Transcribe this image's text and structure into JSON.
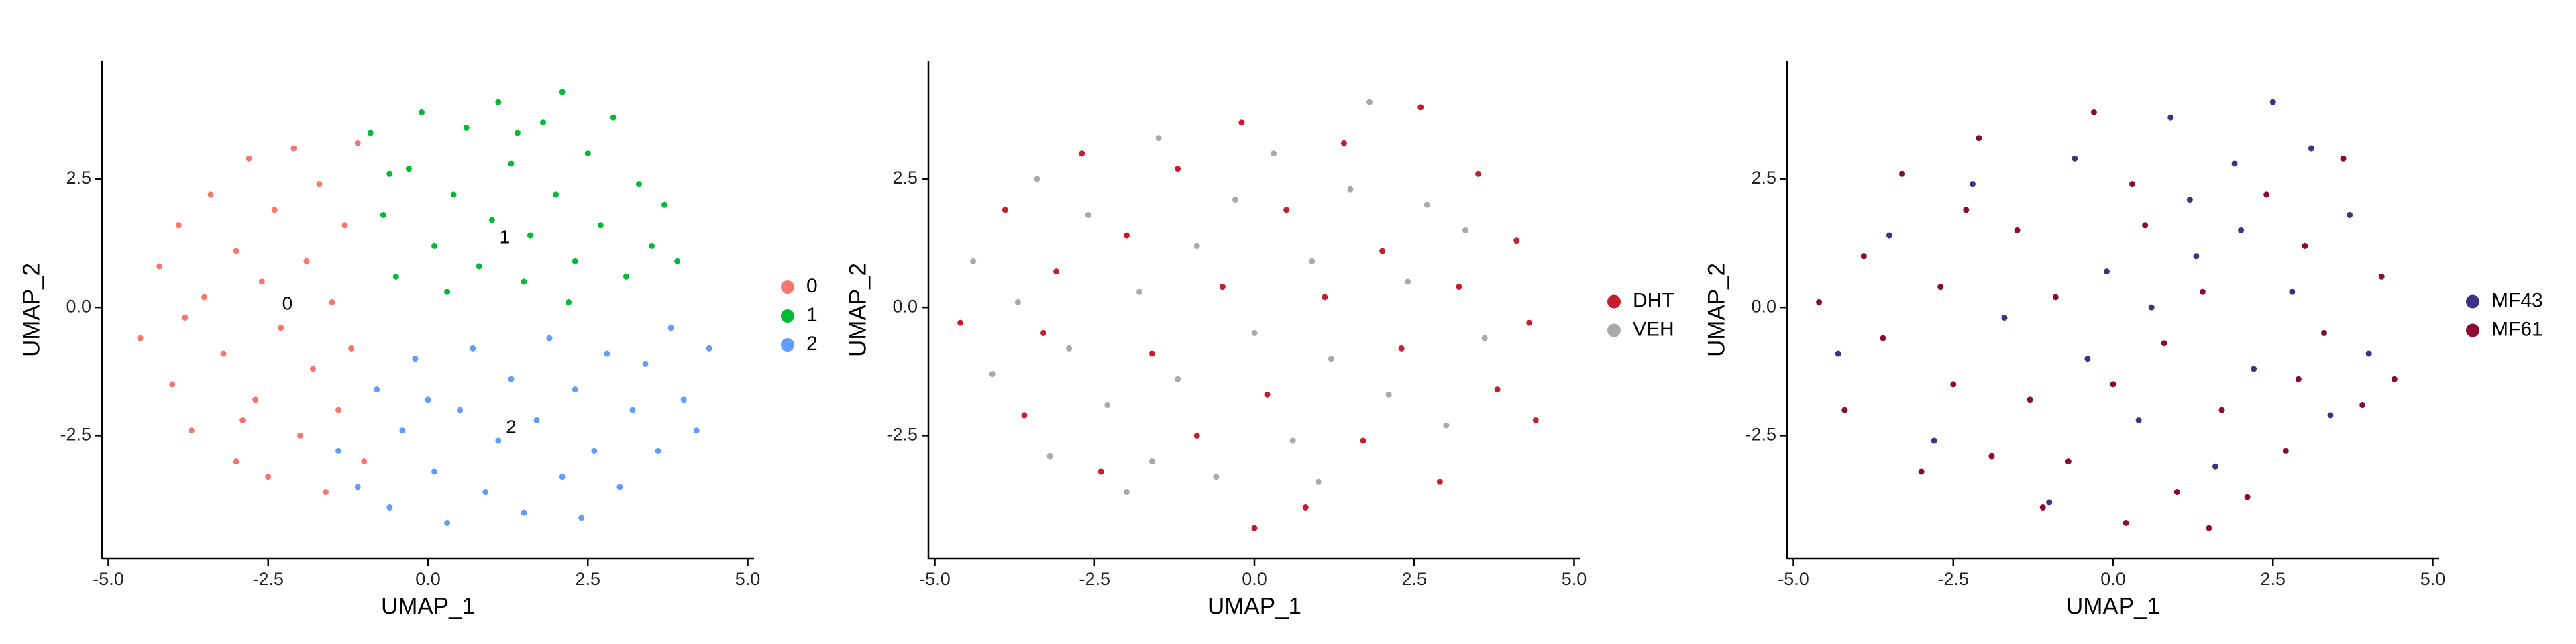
{
  "chart_data": [
    {
      "type": "scatter",
      "xlabel": "UMAP_1",
      "ylabel": "UMAP_2",
      "legend": "right",
      "xlim": [
        -5.1,
        5.1
      ],
      "ylim": [
        -4.9,
        4.8
      ],
      "xticks": [
        {
          "value": -5,
          "label": "-5.0"
        },
        -2.5,
        {
          "value": 0,
          "label": "0.0"
        },
        2.5,
        {
          "value": 5,
          "label": "5.0"
        }
      ],
      "yticks": [
        -2.5,
        {
          "value": 0,
          "label": "0.0"
        },
        2.5
      ],
      "annotations": [
        {
          "text": "0",
          "x": -2.2,
          "y": 0.05
        },
        {
          "text": "1",
          "x": 1.2,
          "y": 1.35
        },
        {
          "text": "2",
          "x": 1.3,
          "y": -2.35
        }
      ],
      "series": [
        {
          "name": "0",
          "color": "#F8766D",
          "x": [
            -4.5,
            -4.2,
            -4.0,
            -3.9,
            -3.7,
            -3.5,
            -3.4,
            -3.2,
            -3.0,
            -3.0,
            -2.8,
            -2.7,
            -2.6,
            -2.5,
            -2.4,
            -2.3,
            -2.1,
            -2.0,
            -1.9,
            -1.8,
            -1.7,
            -1.6,
            -1.5,
            -1.4,
            -1.3,
            -1.2,
            -1.1,
            -1.0,
            -3.8,
            -2.9
          ],
          "y": [
            -0.6,
            0.8,
            -1.5,
            1.6,
            -2.4,
            0.2,
            2.2,
            -0.9,
            -3.0,
            1.1,
            2.9,
            -1.8,
            0.5,
            -3.3,
            1.9,
            -0.4,
            3.1,
            -2.5,
            0.9,
            -1.2,
            2.4,
            -3.6,
            0.1,
            -2.0,
            1.6,
            -0.8,
            3.2,
            -3.0,
            -0.2,
            -2.2
          ]
        },
        {
          "name": "1",
          "color": "#00BA38",
          "x": [
            -0.9,
            -0.7,
            -0.5,
            -0.3,
            -0.1,
            0.1,
            0.3,
            0.4,
            0.6,
            0.8,
            1.0,
            1.1,
            1.3,
            1.5,
            1.6,
            1.8,
            2.0,
            2.1,
            2.3,
            2.5,
            2.7,
            2.9,
            3.1,
            3.3,
            3.5,
            3.7,
            3.9,
            2.2,
            1.4,
            -0.6
          ],
          "y": [
            3.4,
            1.8,
            0.6,
            2.7,
            3.8,
            1.2,
            0.3,
            2.2,
            3.5,
            0.8,
            1.7,
            4.0,
            2.8,
            0.5,
            1.4,
            3.6,
            2.2,
            4.2,
            0.9,
            3.0,
            1.6,
            3.7,
            0.6,
            2.4,
            1.2,
            2.0,
            0.9,
            0.1,
            3.4,
            2.6
          ]
        },
        {
          "name": "2",
          "color": "#619CFF",
          "x": [
            -1.4,
            -1.1,
            -0.8,
            -0.6,
            -0.4,
            -0.2,
            0.1,
            0.3,
            0.5,
            0.7,
            0.9,
            1.1,
            1.3,
            1.5,
            1.7,
            1.9,
            2.1,
            2.3,
            2.6,
            2.8,
            3.0,
            3.2,
            3.4,
            3.6,
            3.8,
            4.0,
            4.2,
            4.4,
            0.0,
            2.4
          ],
          "y": [
            -2.8,
            -3.5,
            -1.6,
            -3.9,
            -2.4,
            -1.0,
            -3.2,
            -4.2,
            -2.0,
            -0.8,
            -3.6,
            -2.6,
            -1.4,
            -4.0,
            -2.2,
            -0.6,
            -3.3,
            -1.6,
            -2.8,
            -0.9,
            -3.5,
            -2.0,
            -1.1,
            -2.8,
            -0.4,
            -1.8,
            -2.4,
            -0.8,
            -1.8,
            -4.1
          ]
        }
      ]
    },
    {
      "type": "scatter",
      "xlabel": "UMAP_1",
      "ylabel": "UMAP_2",
      "legend": "right",
      "xlim": [
        -5.1,
        5.1
      ],
      "ylim": [
        -4.9,
        4.8
      ],
      "xticks": [
        {
          "value": -5,
          "label": "-5.0"
        },
        -2.5,
        {
          "value": 0,
          "label": "0.0"
        },
        2.5,
        {
          "value": 5,
          "label": "5.0"
        }
      ],
      "yticks": [
        -2.5,
        {
          "value": 0,
          "label": "0.0"
        },
        2.5
      ],
      "series": [
        {
          "name": "DHT",
          "color": "#C41E2F",
          "x": [
            -4.6,
            -3.9,
            -3.6,
            -3.1,
            -2.7,
            -2.4,
            -2.0,
            -1.6,
            -1.2,
            -0.9,
            -0.5,
            -0.2,
            0.2,
            0.5,
            0.8,
            1.1,
            1.4,
            1.7,
            2.0,
            2.3,
            2.6,
            2.9,
            3.2,
            3.5,
            3.8,
            4.1,
            4.3,
            4.4,
            0.0,
            -3.3
          ],
          "y": [
            -0.3,
            1.9,
            -2.1,
            0.7,
            3.0,
            -3.2,
            1.4,
            -0.9,
            2.7,
            -2.5,
            0.4,
            3.6,
            -1.7,
            1.9,
            -3.9,
            0.2,
            3.2,
            -2.6,
            1.1,
            -0.8,
            3.9,
            -3.4,
            0.4,
            2.6,
            -1.6,
            1.3,
            -0.3,
            -2.2,
            -4.3,
            -0.5
          ]
        },
        {
          "name": "VEH",
          "color": "#A9A9A9",
          "x": [
            -4.4,
            -4.1,
            -3.7,
            -3.4,
            -3.2,
            -2.9,
            -2.6,
            -2.3,
            -2.0,
            -1.8,
            -1.5,
            -1.2,
            -0.9,
            -0.6,
            -0.3,
            0.0,
            0.3,
            0.6,
            0.9,
            1.2,
            1.5,
            1.8,
            2.1,
            2.4,
            2.7,
            3.0,
            3.3,
            3.6,
            -1.6,
            1.0
          ],
          "y": [
            0.9,
            -1.3,
            0.1,
            2.5,
            -2.9,
            -0.8,
            1.8,
            -1.9,
            -3.6,
            0.3,
            3.3,
            -1.4,
            1.2,
            -3.3,
            2.1,
            -0.5,
            3.0,
            -2.6,
            0.9,
            -1.0,
            2.3,
            4.0,
            -1.7,
            0.5,
            2.0,
            -2.3,
            1.5,
            -0.6,
            -3.0,
            -3.4
          ]
        }
      ]
    },
    {
      "type": "scatter",
      "xlabel": "UMAP_1",
      "ylabel": "UMAP_2",
      "legend": "right",
      "xlim": [
        -5.1,
        5.1
      ],
      "ylim": [
        -4.9,
        4.8
      ],
      "xticks": [
        {
          "value": -5,
          "label": "-5.0"
        },
        -2.5,
        {
          "value": 0,
          "label": "0.0"
        },
        2.5,
        {
          "value": 5,
          "label": "5.0"
        }
      ],
      "yticks": [
        -2.5,
        {
          "value": 0,
          "label": "0.0"
        },
        2.5
      ],
      "series": [
        {
          "name": "MF43",
          "color": "#3B3486",
          "x": [
            -4.3,
            -3.5,
            -2.8,
            -2.2,
            -1.7,
            -1.0,
            -0.6,
            -0.1,
            0.4,
            0.9,
            1.3,
            1.6,
            1.9,
            2.2,
            2.5,
            2.8,
            3.1,
            3.4,
            3.7,
            4.0,
            1.2,
            2.0,
            0.6,
            -0.4
          ],
          "y": [
            -0.9,
            1.4,
            -2.6,
            2.4,
            -0.2,
            -3.8,
            2.9,
            0.7,
            -2.2,
            3.7,
            1.0,
            -3.1,
            2.8,
            -1.2,
            4.0,
            0.3,
            3.1,
            -2.1,
            1.8,
            -0.9,
            2.1,
            1.5,
            0.0,
            -1.0
          ]
        },
        {
          "name": "MF61",
          "color": "#8B0A32",
          "x": [
            -4.6,
            -4.2,
            -3.9,
            -3.6,
            -3.3,
            -3.0,
            -2.7,
            -2.5,
            -2.1,
            -1.9,
            -1.5,
            -1.3,
            -0.9,
            -0.7,
            -0.3,
            0.0,
            0.2,
            0.5,
            0.8,
            1.0,
            1.4,
            1.7,
            2.1,
            2.4,
            2.7,
            3.0,
            3.3,
            3.6,
            3.9,
            4.2,
            4.4,
            -2.3,
            0.3,
            1.5,
            -1.1,
            2.9
          ],
          "y": [
            0.1,
            -2.0,
            1.0,
            -0.6,
            2.6,
            -3.2,
            0.4,
            -1.5,
            3.3,
            -2.9,
            1.5,
            -1.8,
            0.2,
            -3.0,
            3.8,
            -1.5,
            -4.2,
            1.6,
            -0.7,
            -3.6,
            0.3,
            -2.0,
            -3.7,
            2.2,
            -2.8,
            1.2,
            -0.5,
            2.9,
            -1.9,
            0.6,
            -1.4,
            1.9,
            2.4,
            -4.3,
            -3.9,
            -1.4
          ]
        }
      ]
    }
  ]
}
